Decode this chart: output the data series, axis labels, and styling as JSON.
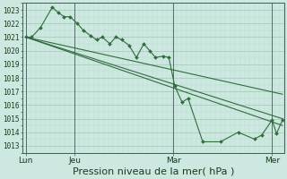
{
  "bg_color": "#cce8e0",
  "grid_major_color": "#aaccbc",
  "grid_minor_color": "#bbddd0",
  "line_color": "#2d6e3a",
  "xlabel": "Pression niveau de la mer( hPa )",
  "xlabel_fontsize": 8,
  "ylim": [
    1012.5,
    1023.5
  ],
  "yticks": [
    1013,
    1014,
    1015,
    1016,
    1017,
    1018,
    1019,
    1020,
    1021,
    1022,
    1023
  ],
  "xtick_labels": [
    "Lun",
    "Jeu",
    "Mar",
    "Mer"
  ],
  "vline_x": [
    0.0,
    0.33,
    1.0,
    1.67
  ],
  "day_boundaries": [
    0.0,
    0.33,
    1.0,
    1.67
  ],
  "xlim": [
    -0.02,
    1.75
  ],
  "line1_x": [
    0.0,
    0.04,
    0.1,
    0.18,
    0.22,
    0.26,
    0.3,
    0.35,
    0.39,
    0.44,
    0.48,
    0.52,
    0.57,
    0.61,
    0.65,
    0.7,
    0.75,
    0.8,
    0.84,
    0.88,
    0.93,
    0.97,
    1.01,
    1.06,
    1.1,
    1.2,
    1.32,
    1.44,
    1.55,
    1.6,
    1.67,
    1.7,
    1.74
  ],
  "line1_y": [
    1021.0,
    1021.0,
    1021.7,
    1023.2,
    1022.8,
    1022.5,
    1022.5,
    1022.0,
    1021.5,
    1021.1,
    1020.8,
    1021.0,
    1020.5,
    1021.0,
    1020.8,
    1020.4,
    1019.5,
    1020.5,
    1020.0,
    1019.5,
    1019.6,
    1019.5,
    1017.4,
    1016.2,
    1016.5,
    1013.3,
    1013.3,
    1014.0,
    1013.5,
    1013.8,
    1014.9,
    1013.9,
    1014.9
  ],
  "line2_x": [
    0.0,
    1.74
  ],
  "line2_y": [
    1021.0,
    1015.0
  ],
  "line3_x": [
    0.0,
    1.74
  ],
  "line3_y": [
    1021.0,
    1014.5
  ],
  "line4_x": [
    0.0,
    1.74
  ],
  "line4_y": [
    1021.0,
    1016.8
  ],
  "n_minor": 5
}
